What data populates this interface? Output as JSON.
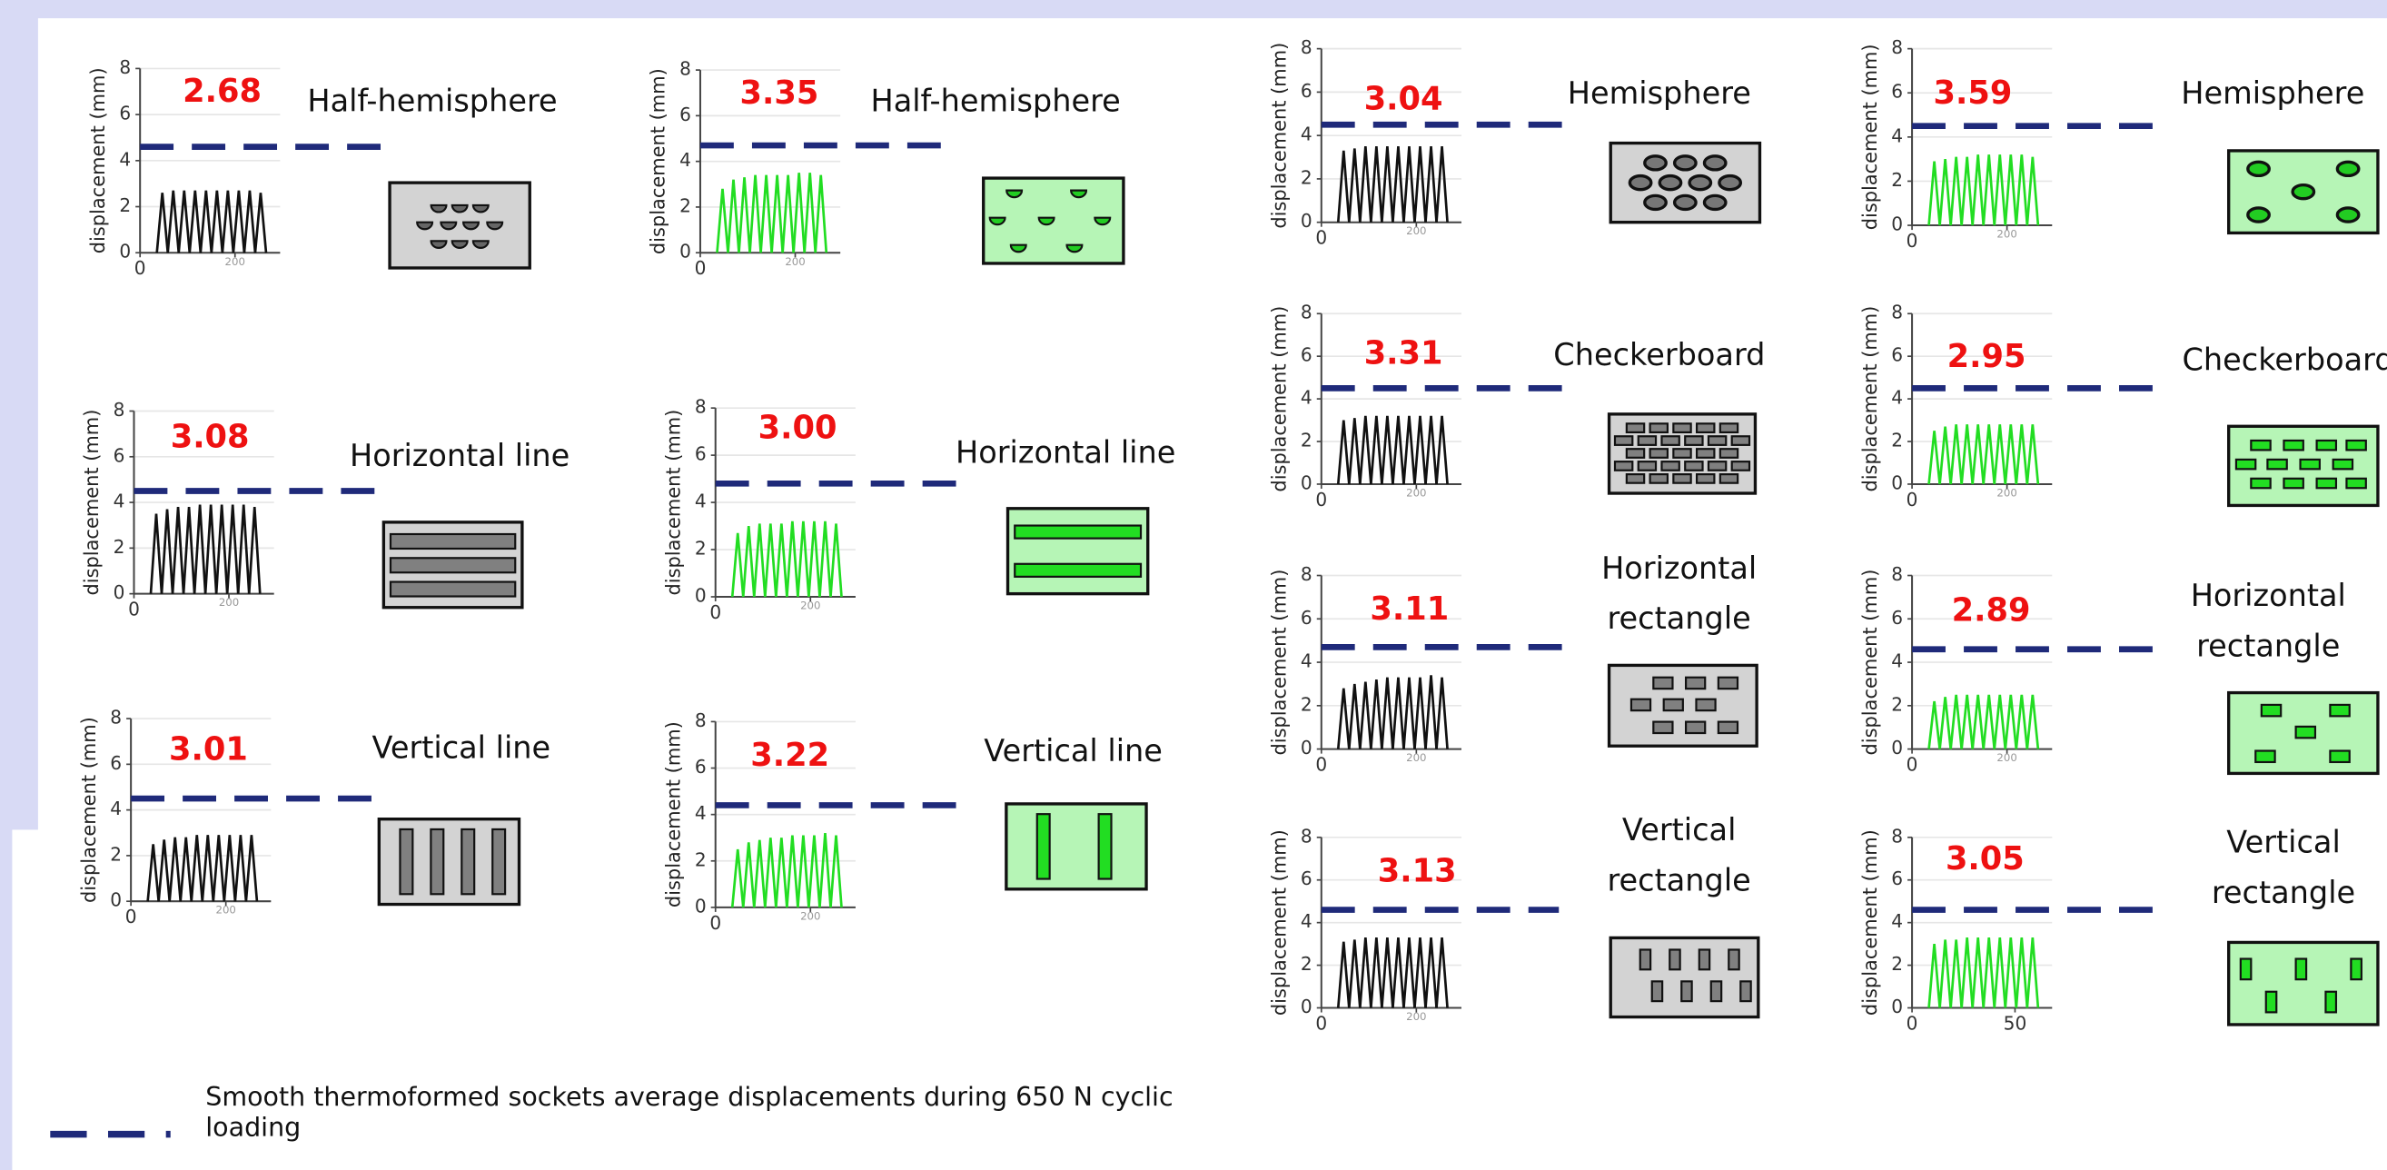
{
  "chart_data": [
    {
      "type": "line",
      "title": "Half-hemisphere",
      "annotation": "2.68",
      "ylabel": "displacement (mm)",
      "color": "#111111",
      "values": [
        2.6,
        2.7,
        2.7,
        2.7,
        2.7,
        2.7,
        2.7,
        2.7,
        2.7,
        2.6
      ],
      "reference": 4.6,
      "ylim": [
        0,
        8
      ],
      "yticks": [
        0,
        2,
        4,
        6,
        8
      ],
      "xlim": [
        0,
        295
      ],
      "xticks": [
        0,
        200
      ],
      "grid": true
    },
    {
      "type": "line",
      "title": "Half-hemisphere",
      "annotation": "3.35",
      "ylabel": "displacement (mm)",
      "color": "#22dd22",
      "values": [
        2.8,
        3.2,
        3.3,
        3.4,
        3.4,
        3.4,
        3.4,
        3.5,
        3.5,
        3.4
      ],
      "reference": 4.7,
      "ylim": [
        0,
        8
      ],
      "yticks": [
        0,
        2,
        4,
        6,
        8
      ],
      "xlim": [
        0,
        295
      ],
      "xticks": [
        0,
        200
      ],
      "grid": true
    },
    {
      "type": "line",
      "title": "Horizontal line",
      "annotation": "3.08",
      "ylabel": "displacement (mm)",
      "color": "#111111",
      "values": [
        3.5,
        3.7,
        3.8,
        3.8,
        3.9,
        3.9,
        3.9,
        3.9,
        3.9,
        3.8
      ],
      "reference": 4.5,
      "ylim": [
        0,
        8
      ],
      "yticks": [
        0,
        2,
        4,
        6,
        8
      ],
      "xlim": [
        0,
        295
      ],
      "xticks": [
        0,
        200
      ],
      "grid": true
    },
    {
      "type": "line",
      "title": "Horizontal line",
      "annotation": "3.00",
      "ylabel": "displacement (mm)",
      "color": "#22dd22",
      "values": [
        2.7,
        3.0,
        3.1,
        3.1,
        3.1,
        3.2,
        3.2,
        3.2,
        3.2,
        3.1
      ],
      "reference": 4.8,
      "ylim": [
        0,
        8
      ],
      "yticks": [
        0,
        2,
        4,
        6,
        8
      ],
      "xlim": [
        0,
        295
      ],
      "xticks": [
        0,
        200
      ],
      "grid": true
    },
    {
      "type": "line",
      "title": "Vertical line",
      "annotation": "3.01",
      "ylabel": "displacement (mm)",
      "color": "#111111",
      "values": [
        2.5,
        2.7,
        2.8,
        2.8,
        2.9,
        2.9,
        2.9,
        2.9,
        2.9,
        2.9
      ],
      "reference": 4.5,
      "ylim": [
        0,
        8
      ],
      "yticks": [
        0,
        2,
        4,
        6,
        8
      ],
      "xlim": [
        0,
        295
      ],
      "xticks": [
        0,
        200
      ],
      "grid": true
    },
    {
      "type": "line",
      "title": "Vertical line",
      "annotation": "3.22",
      "ylabel": "displacement (mm)",
      "color": "#22dd22",
      "values": [
        2.5,
        2.8,
        2.9,
        3.0,
        3.0,
        3.1,
        3.1,
        3.1,
        3.2,
        3.1
      ],
      "reference": 4.4,
      "ylim": [
        0,
        8
      ],
      "yticks": [
        0,
        2,
        4,
        6,
        8
      ],
      "xlim": [
        0,
        295
      ],
      "xticks": [
        0,
        200
      ],
      "grid": true
    },
    {
      "type": "line",
      "title": "Hemisphere",
      "annotation": "3.04",
      "ylabel": "displacement (mm)",
      "color": "#111111",
      "values": [
        3.3,
        3.4,
        3.5,
        3.5,
        3.5,
        3.5,
        3.5,
        3.5,
        3.5,
        3.5
      ],
      "reference": 4.5,
      "ylim": [
        0,
        8
      ],
      "yticks": [
        0,
        2,
        4,
        6,
        8
      ],
      "xlim": [
        0,
        295
      ],
      "xticks": [
        0,
        200
      ],
      "grid": true
    },
    {
      "type": "line",
      "title": "Hemisphere",
      "annotation": "3.59",
      "ylabel": "displacement (mm)",
      "color": "#22dd22",
      "values": [
        2.9,
        3.0,
        3.1,
        3.1,
        3.2,
        3.2,
        3.2,
        3.2,
        3.2,
        3.1
      ],
      "reference": 4.5,
      "ylim": [
        0,
        8
      ],
      "yticks": [
        0,
        2,
        4,
        6,
        8
      ],
      "xlim": [
        0,
        295
      ],
      "xticks": [
        0,
        200
      ],
      "grid": true
    },
    {
      "type": "line",
      "title": "Checkerboard",
      "annotation": "3.31",
      "ylabel": "displacement (mm)",
      "color": "#111111",
      "values": [
        3.0,
        3.1,
        3.2,
        3.2,
        3.2,
        3.2,
        3.2,
        3.2,
        3.2,
        3.2
      ],
      "reference": 4.5,
      "ylim": [
        0,
        8
      ],
      "yticks": [
        0,
        2,
        4,
        6,
        8
      ],
      "xlim": [
        0,
        295
      ],
      "xticks": [
        0,
        200
      ],
      "grid": true
    },
    {
      "type": "line",
      "title": "Checkerboard",
      "annotation": "2.95",
      "ylabel": "displacement (mm)",
      "color": "#22dd22",
      "values": [
        2.5,
        2.7,
        2.8,
        2.8,
        2.8,
        2.8,
        2.8,
        2.8,
        2.8,
        2.8
      ],
      "reference": 4.5,
      "ylim": [
        0,
        8
      ],
      "yticks": [
        0,
        2,
        4,
        6,
        8
      ],
      "xlim": [
        0,
        295
      ],
      "xticks": [
        0,
        200
      ],
      "grid": true
    },
    {
      "type": "line",
      "title": "Horizontal rectangle",
      "annotation": "3.11",
      "ylabel": "displacement (mm)",
      "color": "#111111",
      "values": [
        2.8,
        3.0,
        3.1,
        3.2,
        3.3,
        3.3,
        3.3,
        3.3,
        3.4,
        3.3
      ],
      "reference": 4.7,
      "ylim": [
        0,
        8
      ],
      "yticks": [
        0,
        2,
        4,
        6,
        8
      ],
      "xlim": [
        0,
        295
      ],
      "xticks": [
        0,
        200
      ],
      "grid": true
    },
    {
      "type": "line",
      "title": "Horizontal rectangle",
      "annotation": "2.89",
      "ylabel": "displacement (mm)",
      "color": "#22dd22",
      "values": [
        2.2,
        2.4,
        2.5,
        2.5,
        2.5,
        2.5,
        2.5,
        2.5,
        2.5,
        2.5
      ],
      "reference": 4.6,
      "ylim": [
        0,
        8
      ],
      "yticks": [
        0,
        2,
        4,
        6,
        8
      ],
      "xlim": [
        0,
        295
      ],
      "xticks": [
        0,
        200
      ],
      "grid": true
    },
    {
      "type": "line",
      "title": "Vertical rectangle",
      "annotation": "3.13",
      "ylabel": "displacement (mm)",
      "color": "#111111",
      "values": [
        3.1,
        3.2,
        3.3,
        3.3,
        3.3,
        3.3,
        3.3,
        3.3,
        3.3,
        3.3
      ],
      "reference": 4.6,
      "ylim": [
        0,
        8
      ],
      "yticks": [
        0,
        2,
        4,
        6,
        8
      ],
      "xlim": [
        0,
        295
      ],
      "xticks": [
        0,
        200
      ],
      "grid": true
    },
    {
      "type": "line",
      "title": "Vertical rectangle",
      "annotation": "3.05",
      "ylabel": "displacement (mm)",
      "color": "#22dd22",
      "values": [
        3.0,
        3.2,
        3.2,
        3.3,
        3.3,
        3.3,
        3.3,
        3.3,
        3.3,
        3.3
      ],
      "reference": 4.6,
      "ylim": [
        0,
        8
      ],
      "yticks": [
        0,
        2,
        4,
        6,
        8
      ],
      "xlim": [
        0,
        68
      ],
      "xticks": [
        0,
        50
      ],
      "grid": true
    }
  ],
  "legend": {
    "lines": [
      "Smooth thermoformed sockets average displacements during 650 N cyclic",
      "loading"
    ],
    "color": "#1f2a7a"
  }
}
